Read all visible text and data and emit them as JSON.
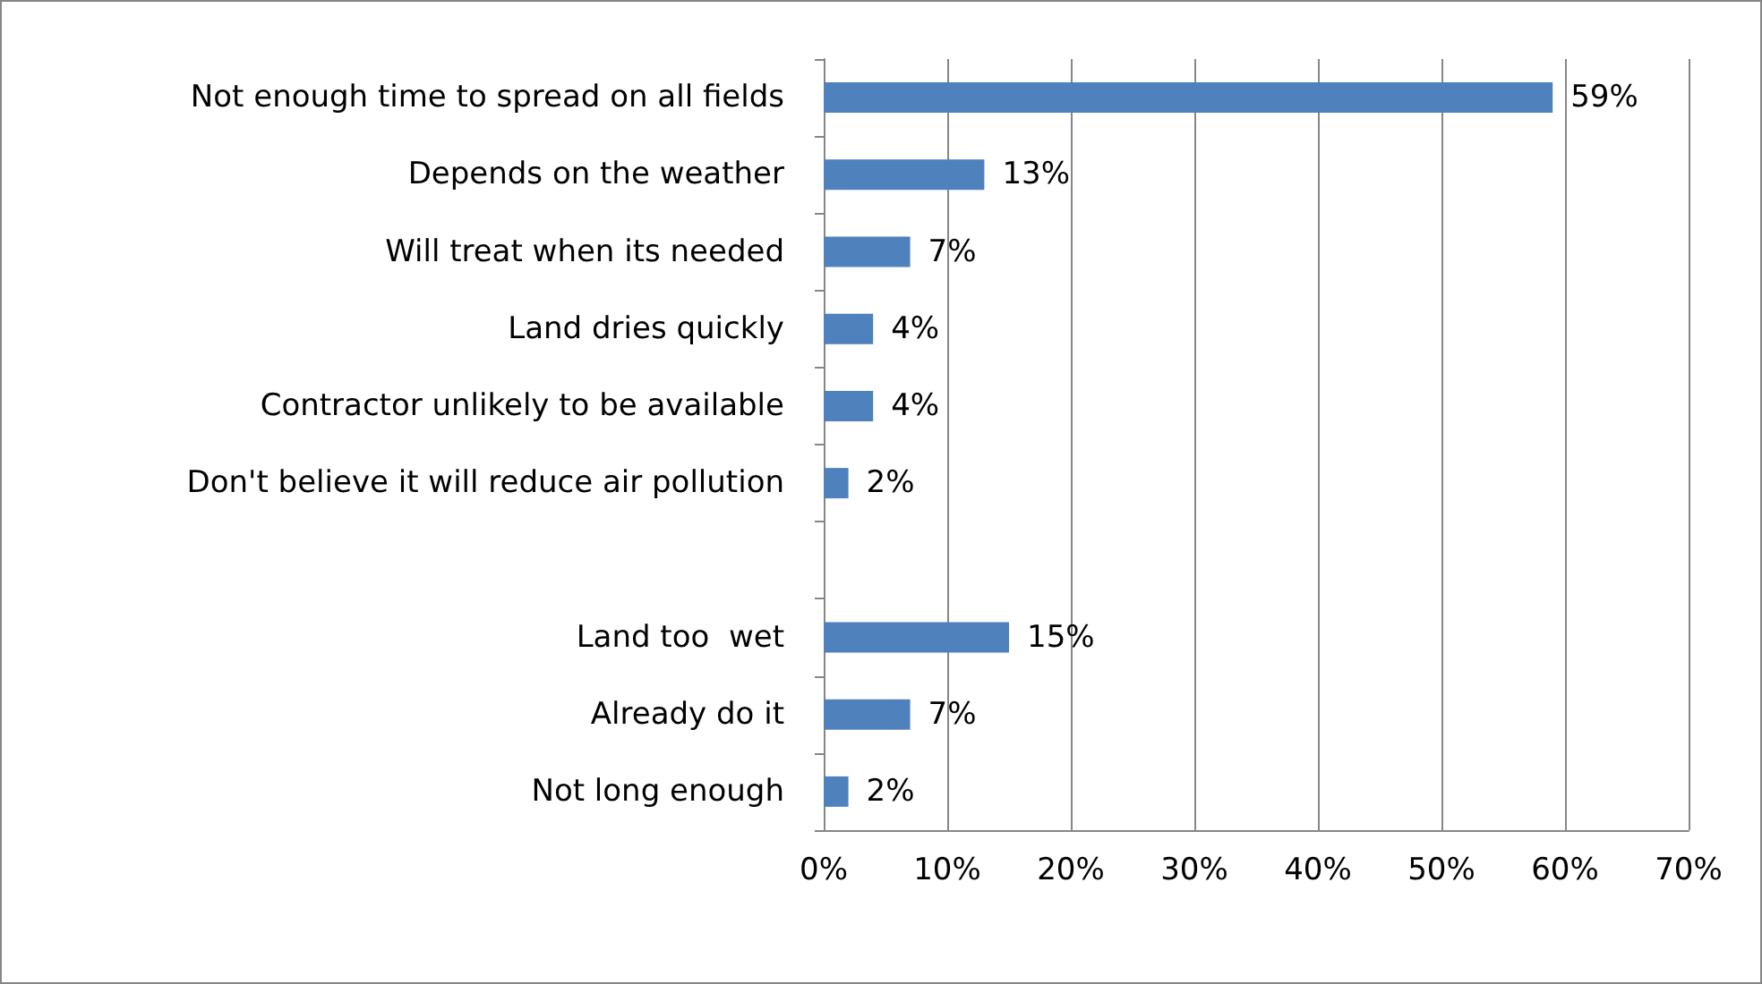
{
  "chart_data": {
    "type": "bar",
    "orientation": "horizontal",
    "categories": [
      "Not enough time to spread on all fields",
      "Depends on the weather",
      "Will treat when its needed",
      "Land dries quickly",
      "Contractor unlikely to be available",
      "Don't believe it will reduce air pollution",
      null,
      "Land too  wet",
      "Already do it",
      "Not long enough"
    ],
    "values": [
      59,
      13,
      7,
      4,
      4,
      2,
      null,
      15,
      7,
      2
    ],
    "value_labels": [
      "59%",
      "13%",
      "7%",
      "4%",
      "4%",
      "2%",
      null,
      "15%",
      "7%",
      "2%"
    ],
    "color": "#4f81bd",
    "xlim": [
      0,
      70
    ],
    "xticks": [
      {
        "value": 0,
        "label": "0%"
      },
      {
        "value": 10,
        "label": "10%"
      },
      {
        "value": 20,
        "label": "20%"
      },
      {
        "value": 30,
        "label": "30%"
      },
      {
        "value": 40,
        "label": "40%"
      },
      {
        "value": 50,
        "label": "50%"
      },
      {
        "value": 60,
        "label": "60%"
      },
      {
        "value": 70,
        "label": "70%"
      }
    ],
    "grid": "x"
  }
}
